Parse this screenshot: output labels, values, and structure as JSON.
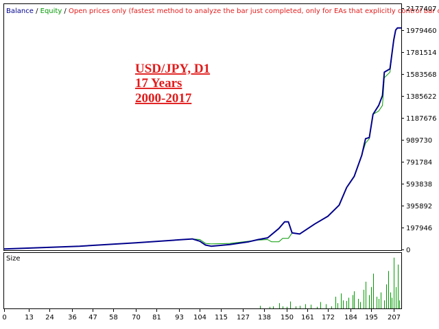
{
  "legend": {
    "balance": "Balance",
    "sep1": " / ",
    "equity": "Equity",
    "sep2": " / ",
    "note": "Open prices only (fastest method to analyze the bar just completed, only for EAs that explicitly control bar opening)"
  },
  "annotation": {
    "line1": "USD/JPY, D1",
    "line2": "17 Years",
    "line3": "2000-2017"
  },
  "size_panel_label": "Size",
  "colors": {
    "balance": "#00008b",
    "equity": "#009900",
    "size_bars": "#009900",
    "annotation": "#e21b1b",
    "frame": "#000000"
  },
  "chart_data": [
    {
      "type": "line",
      "y_ticks": [
        0,
        197946,
        395892,
        593838,
        791784,
        989730,
        1187676,
        1385622,
        1583568,
        1781514,
        1979460,
        2177407
      ],
      "y_tick_labels": [
        "0",
        "197946",
        "395892",
        "593838",
        "791784",
        "989730",
        "1187676",
        "1385622",
        "1583568",
        "1781514",
        "1979460",
        "2177407"
      ],
      "ylim": [
        0,
        2177407
      ],
      "xlim": [
        0,
        211
      ],
      "series": [
        {
          "name": "Balance",
          "x": [
            0,
            40,
            70,
            95,
            100,
            104,
            107,
            110,
            120,
            130,
            135,
            140,
            146,
            149,
            151,
            153,
            157,
            165,
            172,
            178,
            182,
            186,
            190,
            192,
            194,
            196,
            199,
            201,
            202,
            205,
            207,
            208,
            209,
            211
          ],
          "y": [
            5000,
            30000,
            60000,
            90000,
            95000,
            75000,
            40000,
            30000,
            45000,
            70000,
            90000,
            105000,
            190000,
            250000,
            250000,
            150000,
            140000,
            230000,
            300000,
            400000,
            560000,
            660000,
            850000,
            1000000,
            1010000,
            1220000,
            1300000,
            1390000,
            1600000,
            1630000,
            1890000,
            1980000,
            2000000,
            2000000
          ]
        },
        {
          "name": "Equity",
          "x": [
            0,
            40,
            70,
            95,
            100,
            104,
            107,
            110,
            120,
            130,
            135,
            140,
            142,
            146,
            148,
            151,
            153,
            157,
            165,
            172,
            178,
            182,
            186,
            190,
            192,
            194,
            196,
            199,
            201,
            202,
            205,
            207,
            208,
            209,
            211
          ],
          "y": [
            5000,
            30000,
            60000,
            90000,
            95000,
            90000,
            55000,
            50000,
            55000,
            75000,
            85000,
            90000,
            70000,
            70000,
            100000,
            100000,
            150000,
            140000,
            230000,
            300000,
            400000,
            560000,
            660000,
            850000,
            960000,
            1000000,
            1220000,
            1250000,
            1300000,
            1550000,
            1600000,
            1890000,
            1980000,
            2000000,
            2000000
          ]
        }
      ]
    },
    {
      "type": "bar",
      "name": "Size",
      "x_ticks": [
        0,
        13,
        24,
        36,
        47,
        58,
        70,
        81,
        93,
        104,
        115,
        127,
        138,
        150,
        161,
        172,
        184,
        195,
        207
      ],
      "x_tick_labels": [
        "0",
        "13",
        "24",
        "36",
        "47",
        "58",
        "70",
        "81",
        "93",
        "104",
        "115",
        "127",
        "138",
        "150",
        "161",
        "172",
        "184",
        "195",
        "207"
      ],
      "xlim": [
        0,
        211
      ],
      "ylim": [
        0,
        1
      ],
      "x": [
        136,
        141,
        143,
        146,
        148,
        150,
        152,
        155,
        157,
        160,
        163,
        166,
        168,
        171,
        174,
        176,
        177,
        179,
        180,
        182,
        183,
        185,
        186,
        188,
        189,
        191,
        192,
        194,
        195,
        196,
        198,
        199,
        200,
        202,
        203,
        204,
        205,
        206,
        207,
        208,
        209,
        210
      ],
      "values": [
        0.05,
        0.03,
        0.04,
        0.1,
        0.04,
        0.03,
        0.13,
        0.04,
        0.05,
        0.08,
        0.07,
        0.03,
        0.12,
        0.08,
        0.04,
        0.22,
        0.1,
        0.28,
        0.15,
        0.14,
        0.2,
        0.25,
        0.32,
        0.18,
        0.12,
        0.35,
        0.5,
        0.25,
        0.4,
        0.65,
        0.22,
        0.18,
        0.3,
        0.15,
        0.45,
        0.7,
        0.3,
        0.2,
        0.95,
        0.4,
        0.82,
        0.15
      ]
    }
  ]
}
